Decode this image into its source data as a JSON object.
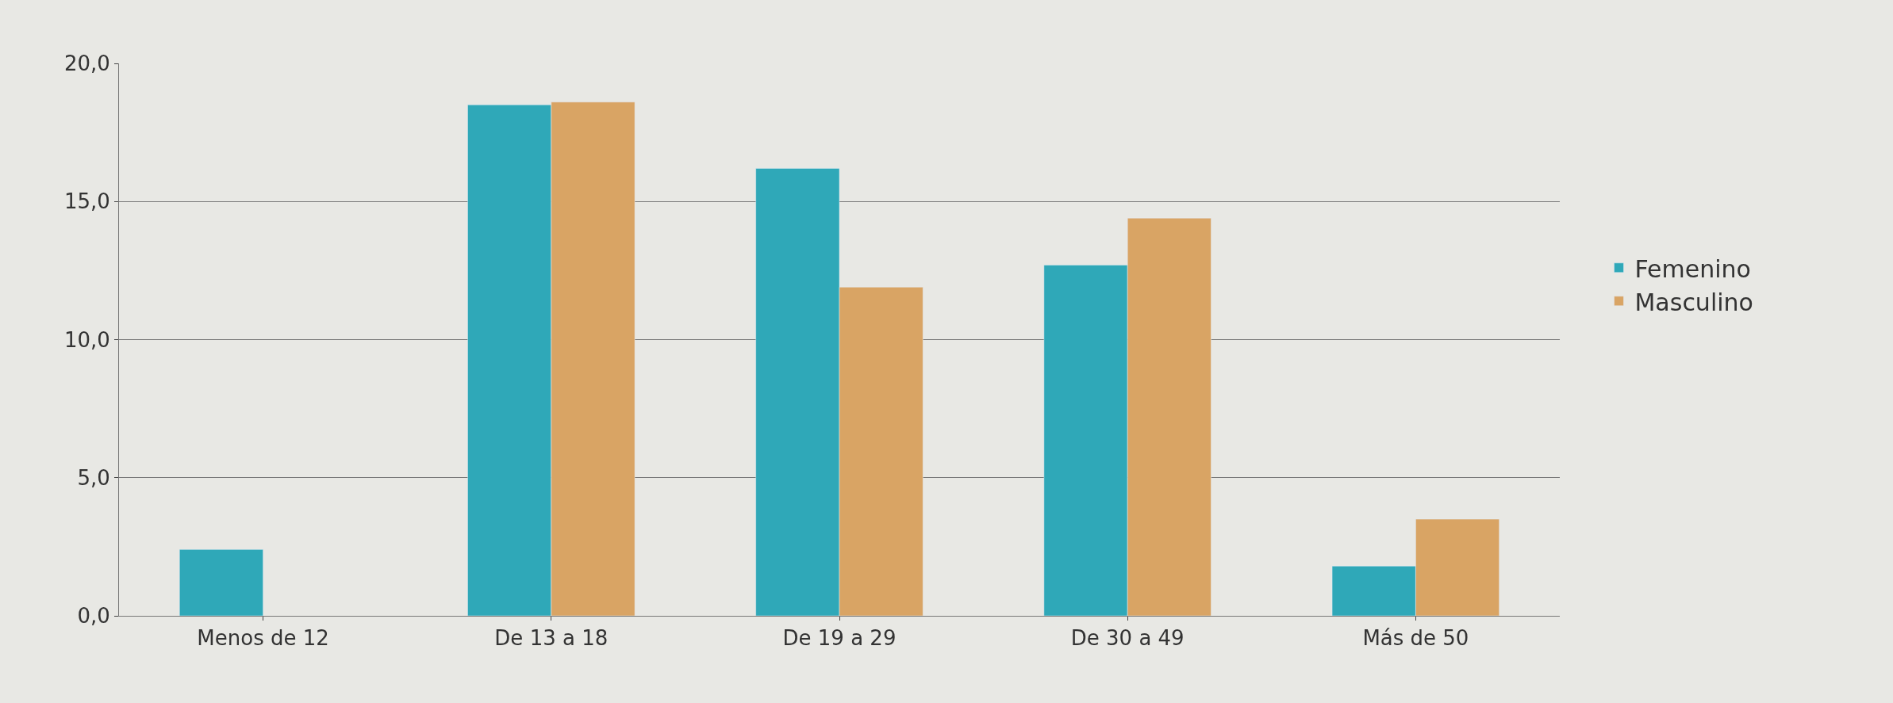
{
  "chart_data": {
    "type": "bar",
    "categories": [
      "Menos de 12",
      "De 13 a 18",
      "De 19 a 29",
      "De 30 a 49",
      "Más de 50"
    ],
    "series": [
      {
        "name": "Femenino",
        "color": "#2fa8b8",
        "values": [
          2.4,
          18.5,
          16.2,
          12.7,
          1.8
        ]
      },
      {
        "name": "Masculino",
        "color": "#d9a464",
        "values": [
          null,
          18.6,
          11.9,
          14.4,
          3.5
        ]
      }
    ],
    "ylim": [
      0,
      20
    ],
    "yticks": [
      {
        "value": 0,
        "label": "0,0"
      },
      {
        "value": 5,
        "label": "5,0"
      },
      {
        "value": 10,
        "label": "10,0"
      },
      {
        "value": 15,
        "label": "15,0"
      },
      {
        "value": 20,
        "label": "20,0"
      }
    ],
    "grid": "y",
    "legend": "right"
  }
}
